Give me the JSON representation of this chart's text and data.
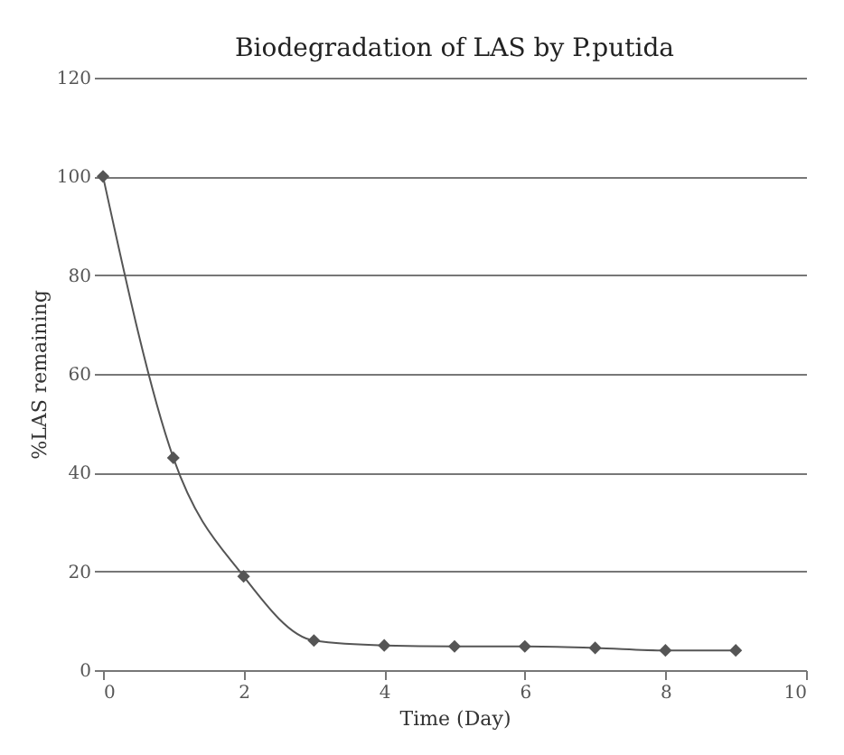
{
  "chart_data": {
    "type": "line",
    "title": "Biodegradation of LAS by P.putida",
    "xlabel": "Time (Day)",
    "ylabel": "%LAS remaining",
    "x": [
      0,
      1,
      2,
      3,
      4,
      5,
      6,
      7,
      8,
      9
    ],
    "series": [
      {
        "color": "#555555",
        "values": [
          100,
          43,
          19,
          6,
          5,
          4.8,
          4.8,
          4.5,
          4,
          4
        ]
      }
    ],
    "xlim": [
      0,
      10
    ],
    "xticks": [
      0,
      2,
      4,
      6,
      8,
      10
    ],
    "ylim": [
      0,
      120
    ],
    "yticks": [
      0,
      20,
      40,
      60,
      80,
      100,
      120
    ],
    "grid": "y",
    "marker": "diamond",
    "line_style": "solid",
    "legend": false
  }
}
